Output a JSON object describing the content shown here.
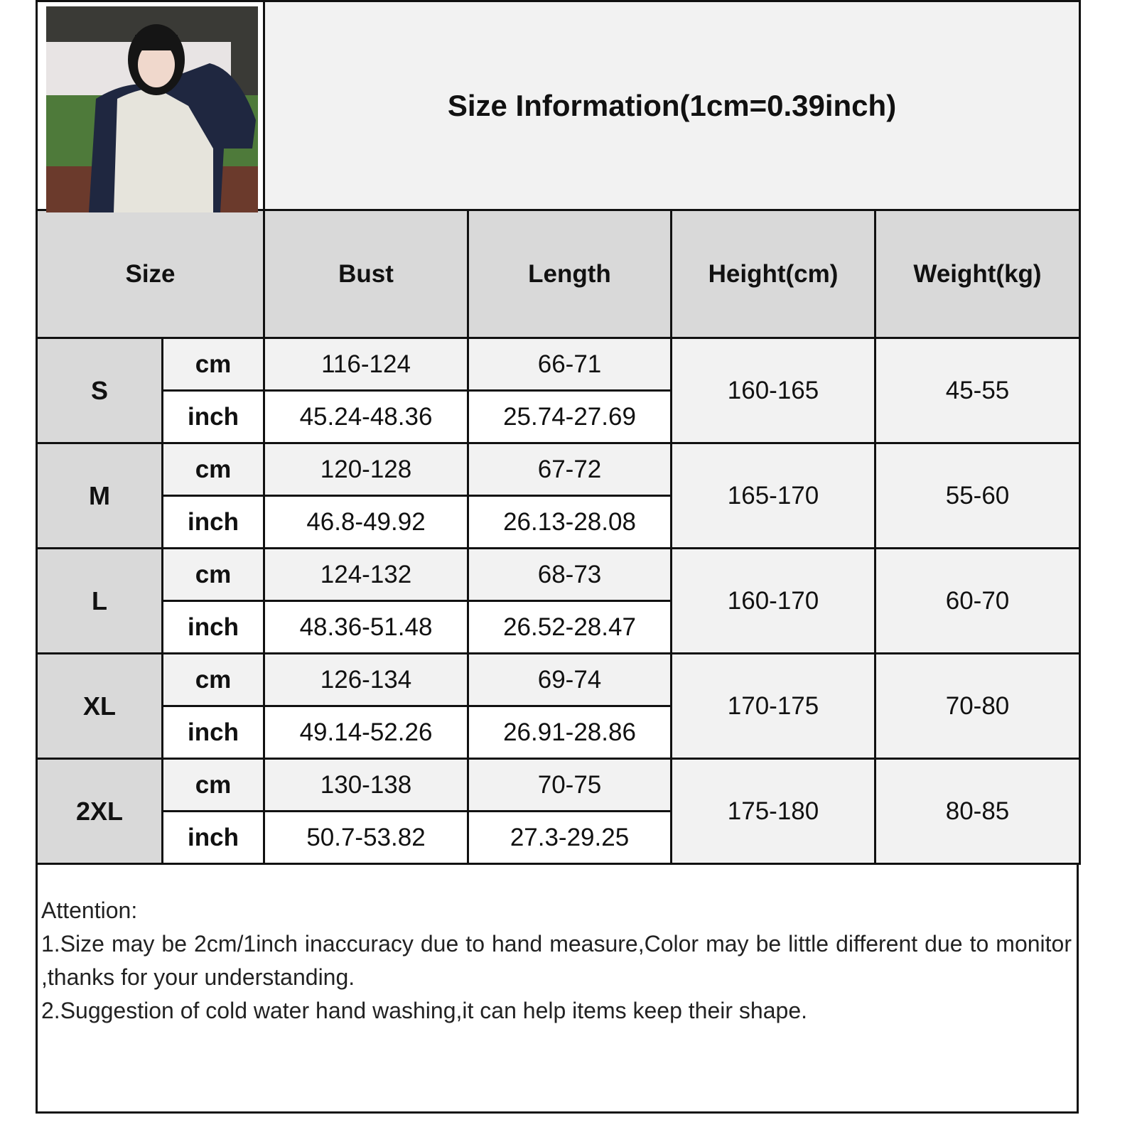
{
  "title": "Size Information(1cm=0.39inch)",
  "headers": [
    "Size",
    "Bust",
    "Length",
    "Height(cm)",
    "Weight(kg)"
  ],
  "units": {
    "cm": "cm",
    "inch": "inch"
  },
  "rows": [
    {
      "size": "S",
      "bust_cm": "116-124",
      "bust_inch": "45.24-48.36",
      "length_cm": "66-71",
      "length_inch": "25.74-27.69",
      "height": "160-165",
      "weight": "45-55"
    },
    {
      "size": "M",
      "bust_cm": "120-128",
      "bust_inch": "46.8-49.92",
      "length_cm": "67-72",
      "length_inch": "26.13-28.08",
      "height": "165-170",
      "weight": "55-60"
    },
    {
      "size": "L",
      "bust_cm": "124-132",
      "bust_inch": "48.36-51.48",
      "length_cm": "68-73",
      "length_inch": "26.52-28.47",
      "height": "160-170",
      "weight": "60-70"
    },
    {
      "size": "XL",
      "bust_cm": "126-134",
      "bust_inch": "49.14-52.26",
      "length_cm": "69-74",
      "length_inch": "26.91-28.86",
      "height": "170-175",
      "weight": "70-80"
    },
    {
      "size": "2XL",
      "bust_cm": "130-138",
      "bust_inch": "50.7-53.82",
      "length_cm": "70-75",
      "length_inch": "27.3-29.25",
      "height": "175-180",
      "weight": "80-85"
    }
  ],
  "attention": {
    "heading": "Attention:",
    "line1": "1.Size may be 2cm/1inch inaccuracy due to hand measure,Color may be little different due to monitor ,thanks for your understanding.",
    "line2": "2.Suggestion of cold water hand washing,it can help items keep their shape."
  },
  "colors": {
    "header_bg": "#d9d9d9",
    "cm_row_bg": "#f2f2f2",
    "inch_row_bg": "#ffffff",
    "border": "#111111"
  }
}
